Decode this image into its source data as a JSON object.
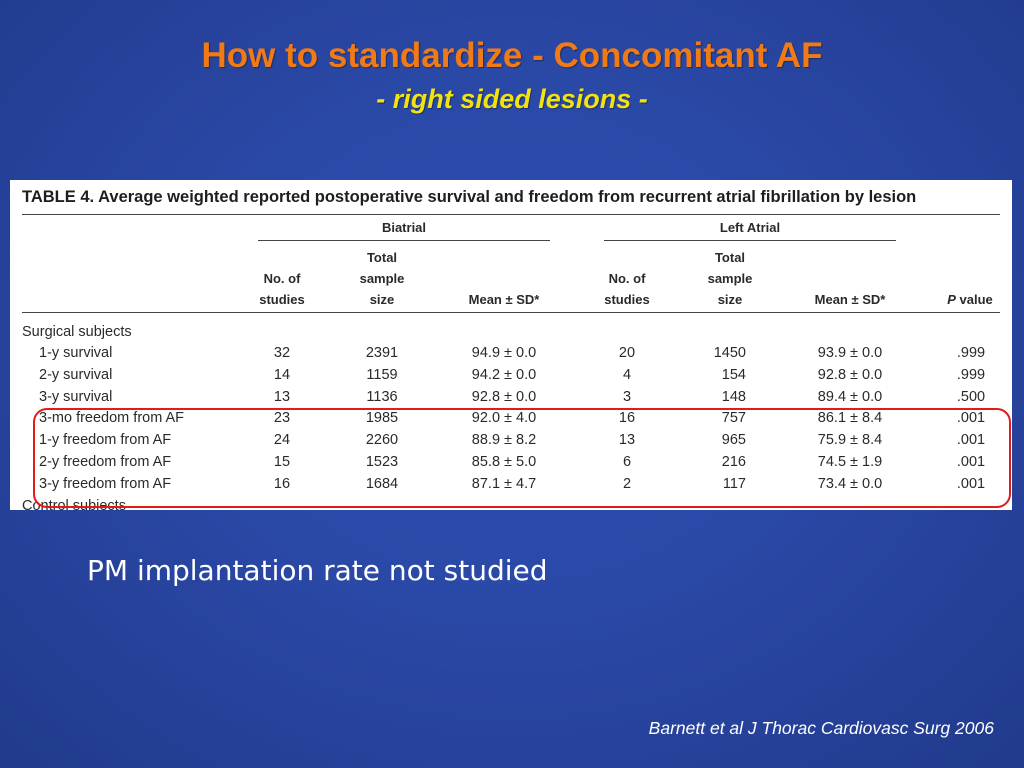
{
  "slide": {
    "title": "How to standardize - Concomitant AF",
    "subtitle": "- right sided lesions -",
    "bullet": "PM implantation rate not studied",
    "citation": "Barnett et al J Thorac Cardiovasc Surg 2006"
  },
  "table": {
    "title": "TABLE 4.  Average weighted reported postoperative survival and freedom from recurrent atrial fibrillation by lesion",
    "groups": {
      "biatrial": "Biatrial",
      "left_atrial": "Left Atrial"
    },
    "columns": {
      "studies": [
        "No. of",
        "studies"
      ],
      "sample": [
        "Total",
        "sample",
        "size"
      ],
      "mean": "Mean ± SD*",
      "p_italic": "P",
      "p_rest": " value"
    },
    "section_surgical": "Surgical subjects",
    "section_control": "Control subjects",
    "rows": [
      {
        "label": "1-y survival",
        "b_n": "32",
        "b_size": "2391",
        "b_mean": "94.9 ± 0.0",
        "l_n": "20",
        "l_size": "1450",
        "l_mean": "93.9 ± 0.0",
        "p": ".999"
      },
      {
        "label": "2-y survival",
        "b_n": "14",
        "b_size": "1159",
        "b_mean": "94.2 ± 0.0",
        "l_n": "4",
        "l_size": "154",
        "l_mean": "92.8 ± 0.0",
        "p": ".999"
      },
      {
        "label": "3-y survival",
        "b_n": "13",
        "b_size": "1136",
        "b_mean": "92.8 ± 0.0",
        "l_n": "3",
        "l_size": "148",
        "l_mean": "89.4 ± 0.0",
        "p": ".500"
      },
      {
        "label": "3-mo freedom from AF",
        "b_n": "23",
        "b_size": "1985",
        "b_mean": "92.0 ± 4.0",
        "l_n": "16",
        "l_size": "757",
        "l_mean": "86.1 ± 8.4",
        "p": ".001"
      },
      {
        "label": "1-y freedom from AF",
        "b_n": "24",
        "b_size": "2260",
        "b_mean": "88.9 ± 8.2",
        "l_n": "13",
        "l_size": "965",
        "l_mean": "75.9 ± 8.4",
        "p": ".001"
      },
      {
        "label": "2-y freedom from AF",
        "b_n": "15",
        "b_size": "1523",
        "b_mean": "85.8 ± 5.0",
        "l_n": "6",
        "l_size": "216",
        "l_mean": "74.5 ± 1.9",
        "p": ".001"
      },
      {
        "label": "3-y freedom from AF",
        "b_n": "16",
        "b_size": "1684",
        "b_mean": "87.1 ± 4.7",
        "l_n": "2",
        "l_size": "117",
        "l_mean": "73.4 ± 0.0",
        "p": ".001"
      }
    ]
  },
  "colors": {
    "background": "#2a48a6",
    "title": "#f07a16",
    "subtitle": "#f2e20e",
    "highlight_border": "#e11a1a"
  }
}
